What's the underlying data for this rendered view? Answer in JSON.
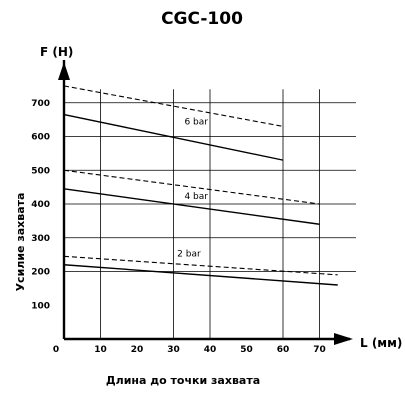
{
  "title": "CGC-100",
  "chart_data": {
    "type": "line",
    "title": "CGC-100",
    "y_unit": "F (H)",
    "x_unit": "L (мм)",
    "ylabel": "Усилие захвата",
    "xlabel": "Длина до точки захвата",
    "xlim": [
      0,
      80
    ],
    "ylim": [
      0,
      800
    ],
    "x_ticks": [
      0,
      10,
      20,
      30,
      40,
      50,
      60,
      70
    ],
    "x_tick_labels": [
      "0",
      "10",
      "20",
      "30",
      "40",
      "50",
      "60",
      "70"
    ],
    "y_ticks": [
      100,
      200,
      300,
      400,
      500,
      600,
      700
    ],
    "y_tick_labels": [
      "100",
      "200",
      "300",
      "400",
      "500",
      "600",
      "700"
    ],
    "vertical_grid": [
      10,
      30,
      40,
      60,
      70
    ],
    "horizontal_grid": [
      200,
      300,
      400,
      500,
      600,
      700
    ],
    "grid": true,
    "series": [
      {
        "name": "6 bar",
        "style": "solid",
        "points": [
          [
            0,
            665
          ],
          [
            60,
            530
          ]
        ],
        "label_at": [
          33,
          635
        ]
      },
      {
        "name": "6 bar",
        "style": "dashed",
        "points": [
          [
            0,
            750
          ],
          [
            60,
            630
          ]
        ]
      },
      {
        "name": "4 bar",
        "style": "solid",
        "points": [
          [
            0,
            445
          ],
          [
            70,
            340
          ]
        ],
        "label_at": [
          33,
          415
        ]
      },
      {
        "name": "4 bar",
        "style": "dashed",
        "points": [
          [
            0,
            500
          ],
          [
            70,
            400
          ]
        ]
      },
      {
        "name": "2 bar",
        "style": "solid",
        "points": [
          [
            0,
            220
          ],
          [
            75,
            160
          ]
        ],
        "label_at": [
          31,
          245
        ]
      },
      {
        "name": "2 bar",
        "style": "dashed",
        "points": [
          [
            0,
            245
          ],
          [
            75,
            190
          ]
        ]
      }
    ],
    "colors": {
      "line": "#000000",
      "grid": "#000000",
      "background": "#ffffff"
    }
  }
}
